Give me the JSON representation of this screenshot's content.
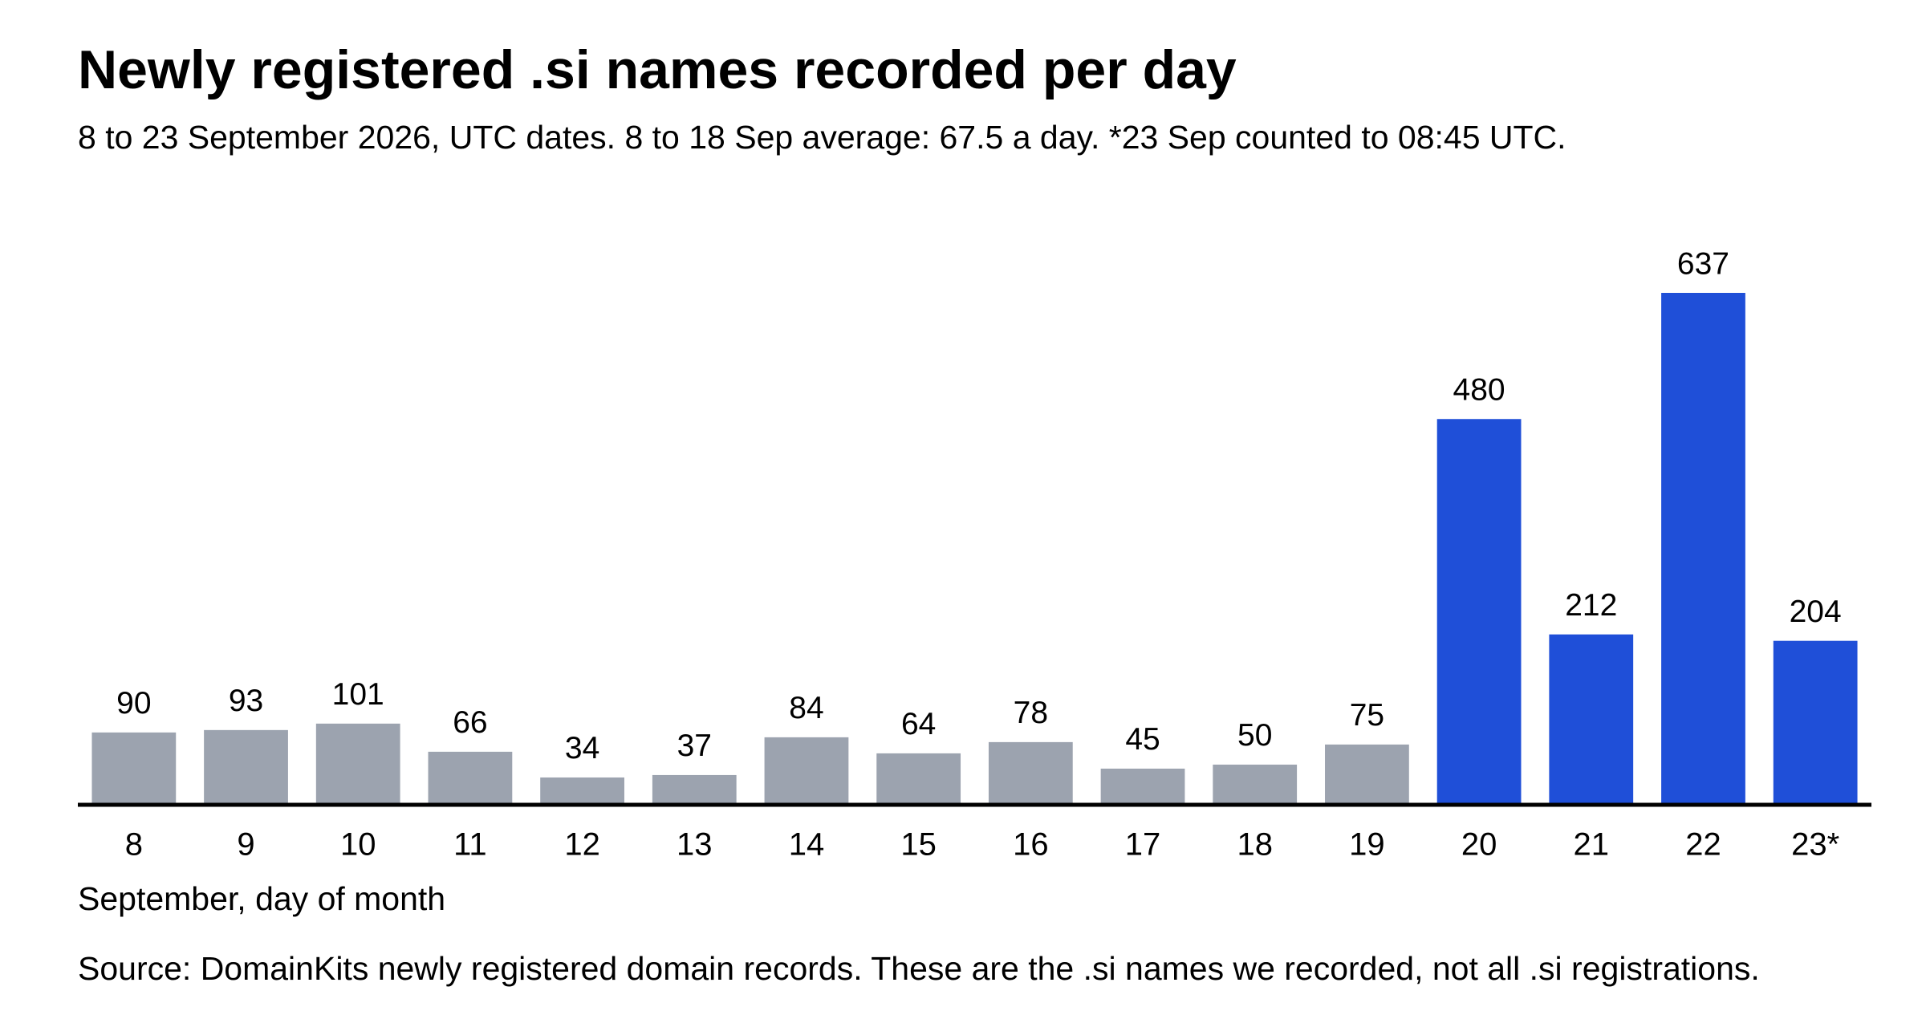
{
  "chart_data": {
    "type": "bar",
    "title": "Newly registered .si names recorded per day",
    "subtitle": "8 to 23 September 2026, UTC dates. 8 to 18 Sep average: 67.5 a day. *23 Sep counted to 08:45 UTC.",
    "x_label": "September, day of month",
    "source": "Source: DomainKits newly registered domain records. These are the .si names we recorded, not all .si registrations.",
    "categories": [
      "8",
      "9",
      "10",
      "11",
      "12",
      "13",
      "14",
      "15",
      "16",
      "17",
      "18",
      "19",
      "20",
      "21",
      "22",
      "23*"
    ],
    "values": [
      90,
      93,
      101,
      66,
      34,
      37,
      84,
      64,
      78,
      45,
      50,
      75,
      480,
      212,
      637,
      204
    ],
    "colors": [
      "#9ca3af",
      "#9ca3af",
      "#9ca3af",
      "#9ca3af",
      "#9ca3af",
      "#9ca3af",
      "#9ca3af",
      "#9ca3af",
      "#9ca3af",
      "#9ca3af",
      "#9ca3af",
      "#9ca3af",
      "#1f4fd8",
      "#1f4fd8",
      "#1f4fd8",
      "#1f4fd8"
    ]
  }
}
